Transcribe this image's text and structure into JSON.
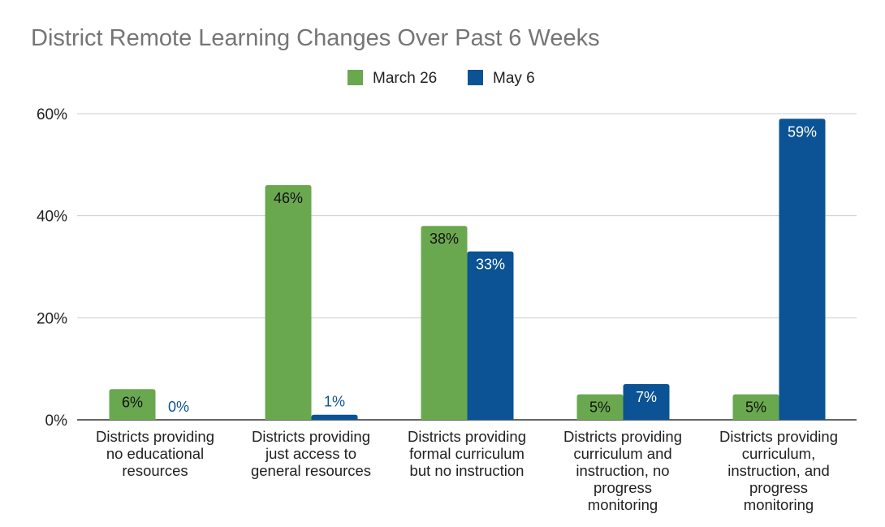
{
  "chart_data": {
    "type": "bar",
    "title": "District Remote Learning Changes Over Past 6 Weeks",
    "xlabel": "",
    "ylabel": "",
    "ylim": [
      0,
      60
    ],
    "yticks": [
      "0%",
      "20%",
      "40%",
      "60%"
    ],
    "ytick_values": [
      0,
      20,
      40,
      60
    ],
    "grid": true,
    "legend_position": "top-center",
    "categories": [
      [
        "Districts providing",
        "no educational",
        "resources"
      ],
      [
        "Districts providing",
        "just access to",
        "general resources"
      ],
      [
        "Districts providing",
        "formal curriculum",
        "but no instruction"
      ],
      [
        "Districts providing",
        "curriculum and",
        "instruction, no",
        "progress",
        "monitoring"
      ],
      [
        "Districts providing",
        "curriculum,",
        "instruction, and",
        "progress",
        "monitoring"
      ]
    ],
    "series": [
      {
        "name": "March 26",
        "color": "#6aa84f",
        "values": [
          6,
          46,
          38,
          5,
          5
        ],
        "labels": [
          "6%",
          "46%",
          "38%",
          "5%",
          "5%"
        ]
      },
      {
        "name": "May 6",
        "color": "#0b5394",
        "values": [
          0,
          1,
          33,
          7,
          59
        ],
        "labels": [
          "0%",
          "1%",
          "33%",
          "7%",
          "59%"
        ]
      }
    ]
  }
}
